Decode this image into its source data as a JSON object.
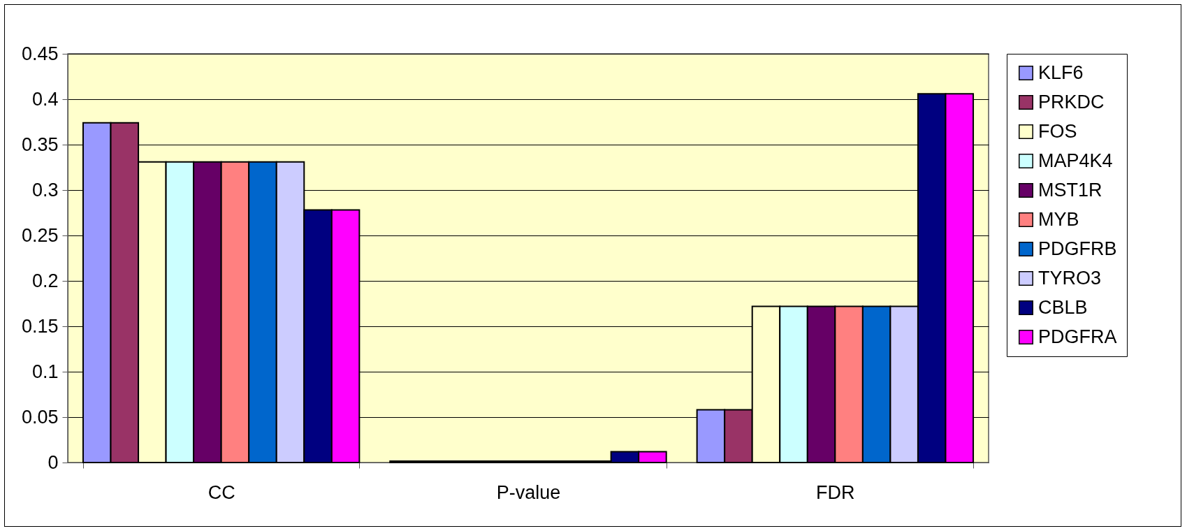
{
  "chart_data": {
    "type": "bar",
    "categories": [
      "CC",
      "P-value",
      "FDR"
    ],
    "series": [
      {
        "name": "KLF6",
        "color": "#9999ff",
        "values": [
          0.374,
          0.0015,
          0.058
        ]
      },
      {
        "name": "PRKDC",
        "color": "#993366",
        "values": [
          0.374,
          0.0015,
          0.058
        ]
      },
      {
        "name": "FOS",
        "color": "#ffffcc",
        "values": [
          0.331,
          0.0015,
          0.172
        ]
      },
      {
        "name": "MAP4K4",
        "color": "#ccffff",
        "values": [
          0.331,
          0.0015,
          0.172
        ]
      },
      {
        "name": "MST1R",
        "color": "#660066",
        "values": [
          0.331,
          0.0015,
          0.172
        ]
      },
      {
        "name": "MYB",
        "color": "#ff8080",
        "values": [
          0.331,
          0.0015,
          0.172
        ]
      },
      {
        "name": "PDGFRB",
        "color": "#0066cc",
        "values": [
          0.331,
          0.0015,
          0.172
        ]
      },
      {
        "name": "TYRO3",
        "color": "#ccccff",
        "values": [
          0.331,
          0.0015,
          0.172
        ]
      },
      {
        "name": "CBLB",
        "color": "#000080",
        "values": [
          0.278,
          0.012,
          0.406
        ]
      },
      {
        "name": "PDGFRA",
        "color": "#ff00ff",
        "values": [
          0.278,
          0.012,
          0.406
        ]
      }
    ],
    "ylim": [
      0,
      0.45
    ],
    "yticks": [
      0,
      0.05,
      0.1,
      0.15,
      0.2,
      0.25,
      0.3,
      0.35,
      0.4,
      0.45
    ],
    "grid": "y",
    "legend": "right"
  }
}
